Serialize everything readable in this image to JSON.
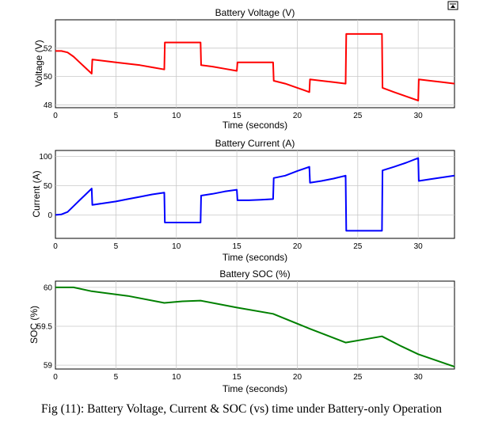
{
  "figure_caption": "Fig (11): Battery Voltage, Current & SOC (vs) time under Battery-only Operation",
  "toolbar_icon": "dock-icon",
  "chart_data": [
    {
      "type": "line",
      "title": "Battery Voltage (V)",
      "xlabel": "Time (seconds)",
      "ylabel": "Voltage (V)",
      "xlim": [
        0,
        33
      ],
      "ylim": [
        47.8,
        54
      ],
      "xticks": [
        0,
        5,
        10,
        15,
        20,
        25,
        30
      ],
      "yticks": [
        48,
        50,
        52
      ],
      "grid": true,
      "color": "#ff0000",
      "series": [
        {
          "x": [
            0,
            0.5,
            1,
            1.5,
            2,
            2.5,
            3,
            3.05,
            4,
            5,
            6,
            7,
            8,
            9,
            9.05,
            10,
            11,
            12,
            12.05,
            13,
            14,
            15,
            15.05,
            16,
            17,
            18,
            18.05,
            19,
            20,
            21,
            21.05,
            22,
            23,
            24,
            24.05,
            25,
            26,
            27,
            27.05,
            28,
            29,
            30,
            30.05,
            31,
            32,
            33
          ],
          "y": [
            51.8,
            51.8,
            51.7,
            51.4,
            51.0,
            50.6,
            50.2,
            51.2,
            51.1,
            51.0,
            50.9,
            50.8,
            50.65,
            50.5,
            52.4,
            52.4,
            52.4,
            52.4,
            50.8,
            50.7,
            50.55,
            50.4,
            51.0,
            51.0,
            51.0,
            51.0,
            49.7,
            49.5,
            49.2,
            48.9,
            49.8,
            49.7,
            49.6,
            49.5,
            53.0,
            53.0,
            53.0,
            53.0,
            49.2,
            48.9,
            48.6,
            48.3,
            49.8,
            49.7,
            49.6,
            49.5
          ]
        }
      ]
    },
    {
      "type": "line",
      "title": "Battery Current (A)",
      "xlabel": "Time (seconds)",
      "ylabel": "Current (A)",
      "xlim": [
        0,
        33
      ],
      "ylim": [
        -40,
        110
      ],
      "xticks": [
        0,
        5,
        10,
        15,
        20,
        25,
        30
      ],
      "yticks": [
        0,
        50,
        100
      ],
      "grid": true,
      "color": "#0000ff",
      "series": [
        {
          "x": [
            0,
            0.5,
            1,
            1.5,
            2,
            2.5,
            3,
            3.05,
            4,
            5,
            6,
            7,
            8,
            9,
            9.05,
            10,
            11,
            12,
            12.05,
            13,
            14,
            15,
            15.05,
            16,
            17,
            18,
            18.05,
            19,
            20,
            21,
            21.05,
            22,
            23,
            24,
            24.05,
            25,
            26,
            27,
            27.05,
            28,
            29,
            30,
            30.05,
            31,
            32,
            33
          ],
          "y": [
            0,
            1,
            5,
            15,
            25,
            35,
            45,
            17,
            20,
            23,
            27,
            31,
            35,
            38,
            -13,
            -13,
            -13,
            -13,
            33,
            36,
            40,
            43,
            25,
            25,
            26,
            27,
            63,
            67,
            75,
            82,
            55,
            58,
            62,
            67,
            -27,
            -27,
            -27,
            -27,
            76,
            82,
            89,
            97,
            58,
            61,
            64,
            67
          ]
        }
      ]
    },
    {
      "type": "line",
      "title": "Battery SOC (%)",
      "xlabel": "Time (seconds)",
      "ylabel": "SOC (%)",
      "xlim": [
        0,
        33
      ],
      "ylim": [
        58.95,
        60.08
      ],
      "xticks": [
        0,
        5,
        10,
        15,
        20,
        25,
        30
      ],
      "yticks": [
        59,
        59.5,
        60
      ],
      "grid": true,
      "color": "#008000",
      "series": [
        {
          "x": [
            0,
            1.5,
            3,
            6,
            9,
            10.5,
            12,
            15,
            18,
            21,
            24,
            25.5,
            27,
            28.5,
            30,
            33
          ],
          "y": [
            60.0,
            60.0,
            59.95,
            59.89,
            59.8,
            59.82,
            59.83,
            59.74,
            59.66,
            59.47,
            59.29,
            59.33,
            59.37,
            59.25,
            59.14,
            58.98
          ]
        }
      ]
    }
  ]
}
